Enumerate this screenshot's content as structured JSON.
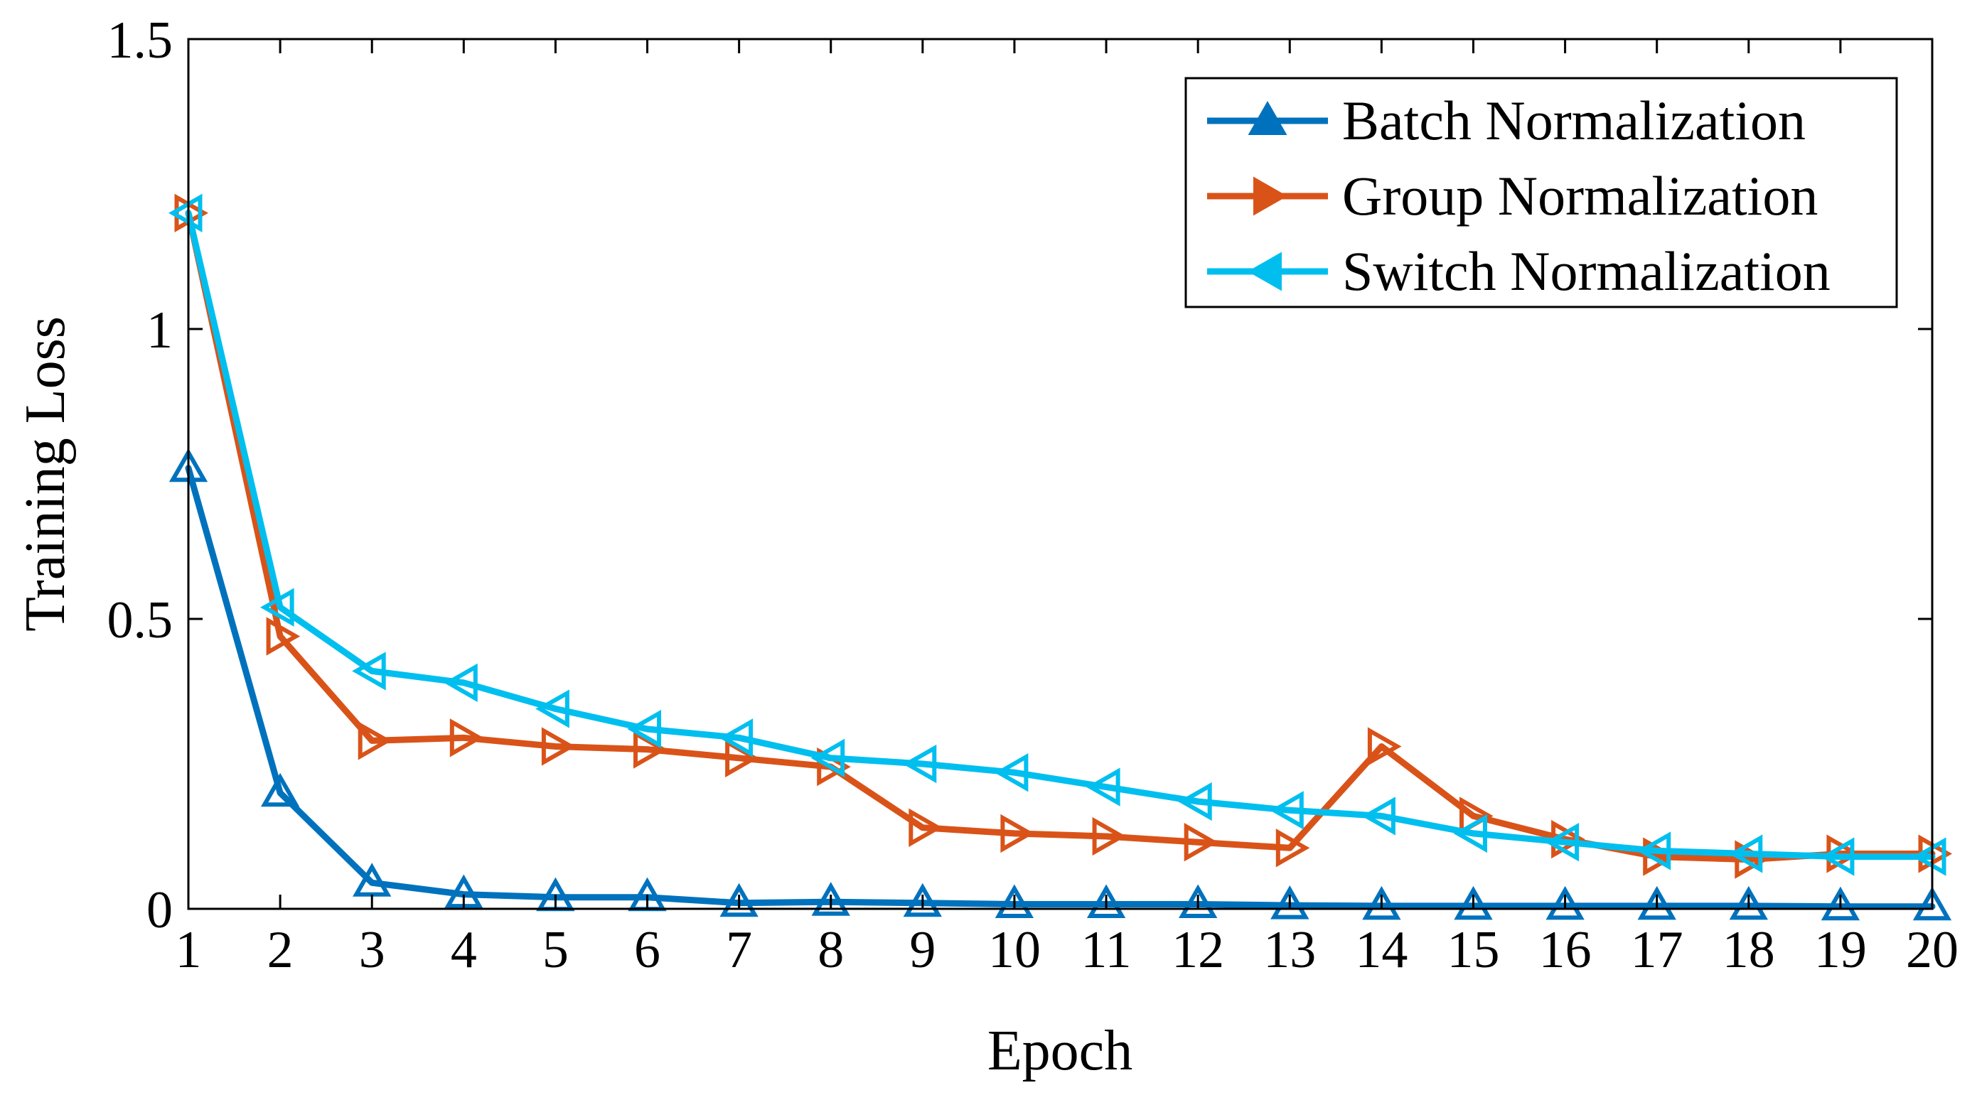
{
  "chart_data": {
    "type": "line",
    "title": "",
    "xlabel": "Epoch",
    "ylabel": "Training Loss",
    "xlim": [
      1,
      20
    ],
    "ylim": [
      0,
      1.5
    ],
    "x": [
      1,
      2,
      3,
      4,
      5,
      6,
      7,
      8,
      9,
      10,
      11,
      12,
      13,
      14,
      15,
      16,
      17,
      18,
      19,
      20
    ],
    "xticks": [
      "1",
      "2",
      "3",
      "4",
      "5",
      "6",
      "7",
      "8",
      "9",
      "10",
      "11",
      "12",
      "13",
      "14",
      "15",
      "16",
      "17",
      "18",
      "19",
      "20"
    ],
    "yticks": [
      {
        "value": 0,
        "label": "0"
      },
      {
        "value": 0.5,
        "label": "0.5"
      },
      {
        "value": 1,
        "label": "1"
      },
      {
        "value": 1.5,
        "label": "1.5"
      }
    ],
    "grid": false,
    "legend_position": "top-right",
    "series": [
      {
        "name": "Batch Normalization",
        "color": "#0072BD",
        "marker": "triangle-up",
        "values": [
          0.76,
          0.2,
          0.045,
          0.025,
          0.02,
          0.02,
          0.01,
          0.012,
          0.01,
          0.008,
          0.008,
          0.008,
          0.006,
          0.005,
          0.005,
          0.005,
          0.005,
          0.005,
          0.004,
          0.004
        ]
      },
      {
        "name": "Group Normalization",
        "color": "#D95319",
        "marker": "triangle-right",
        "values": [
          1.2,
          0.47,
          0.29,
          0.295,
          0.28,
          0.275,
          0.26,
          0.245,
          0.14,
          0.13,
          0.125,
          0.115,
          0.105,
          0.28,
          0.16,
          0.12,
          0.09,
          0.085,
          0.095,
          0.095
        ]
      },
      {
        "name": "Switch Normalization",
        "color": "#00BFEF",
        "marker": "triangle-left",
        "values": [
          1.2,
          0.52,
          0.41,
          0.39,
          0.345,
          0.31,
          0.295,
          0.26,
          0.25,
          0.235,
          0.21,
          0.185,
          0.17,
          0.16,
          0.13,
          0.115,
          0.1,
          0.095,
          0.09,
          0.09
        ]
      }
    ]
  }
}
